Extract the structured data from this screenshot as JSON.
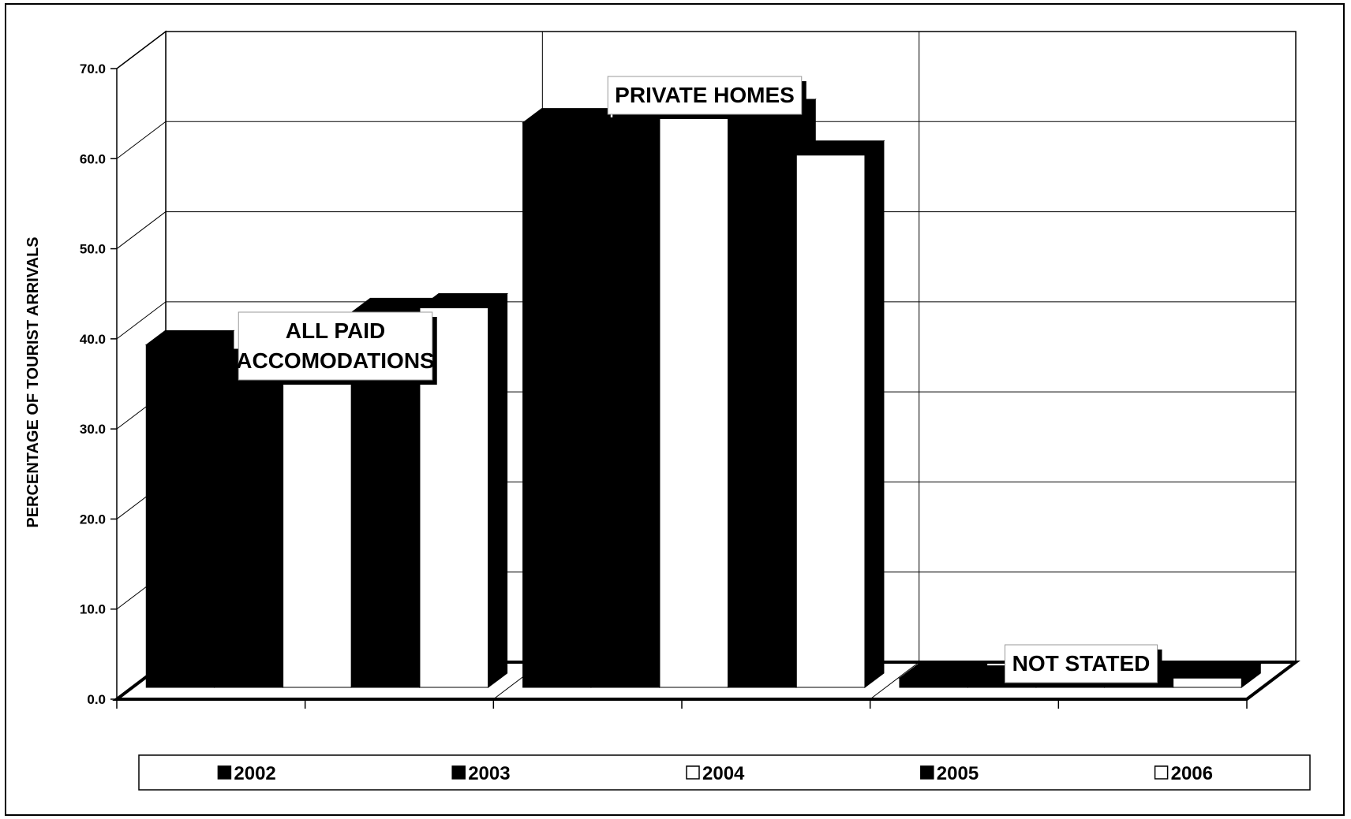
{
  "chart_data": {
    "type": "bar",
    "categories": [
      "ALL PAID ACCOMODATIONS",
      "PRIVATE HOMES",
      "NOT STATED"
    ],
    "category_annotations": [
      [
        "ALL PAID",
        "ACCOMODATIONS"
      ],
      [
        "PRIVATE HOMES"
      ],
      [
        "NOT STATED"
      ]
    ],
    "series": [
      {
        "name": "2002",
        "color": "#000000",
        "values": [
          37.0,
          61.0,
          1.0
        ]
      },
      {
        "name": "2003",
        "color": "#000000",
        "values": [
          35.0,
          60.0,
          0.8
        ]
      },
      {
        "name": "2004",
        "color": "#ffffff",
        "values": [
          33.0,
          63.0,
          0.5
        ]
      },
      {
        "name": "2005",
        "color": "#000000",
        "values": [
          40.5,
          62.0,
          1.2
        ]
      },
      {
        "name": "2006",
        "color": "#ffffff",
        "values": [
          41.0,
          57.5,
          1.0
        ]
      }
    ],
    "ylabel": "PERCENTAGE OF TOURIST ARRIVALS",
    "xlabel": "",
    "ylim": [
      0,
      70
    ],
    "yticks": [
      "0.0",
      "10.0",
      "20.0",
      "30.0",
      "40.0",
      "50.0",
      "60.0",
      "70.0"
    ],
    "grid": true,
    "legend_position": "bottom",
    "style": "3d-clustered-column"
  }
}
